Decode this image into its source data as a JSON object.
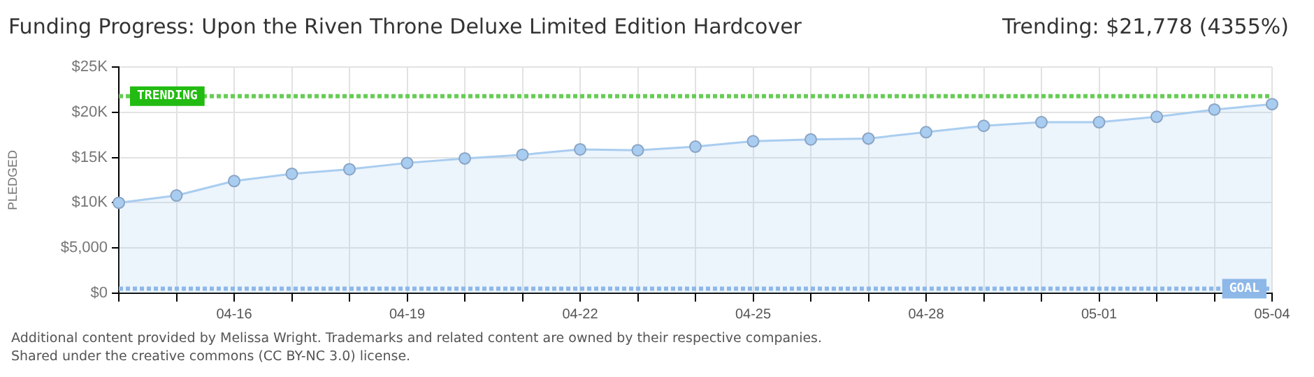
{
  "chart_data": {
    "type": "area",
    "title": "Funding Progress: Upon the Riven Throne Deluxe Limited Edition Hardcover",
    "subtitle": "Trending: $21,778 (4355%)",
    "ylabel": "PLEDGED",
    "categories": [
      null,
      null,
      "04-16",
      null,
      null,
      "04-19",
      null,
      null,
      "04-22",
      null,
      null,
      "04-25",
      null,
      null,
      "04-28",
      null,
      null,
      "05-01",
      null,
      null,
      "05-04"
    ],
    "values": [
      10000,
      10800,
      12400,
      13200,
      13700,
      14400,
      14900,
      15300,
      15900,
      15800,
      16200,
      16800,
      17000,
      17100,
      17800,
      18500,
      18900,
      18900,
      19500,
      20300,
      20900
    ],
    "color": "#a9cdf0",
    "marker": "circle",
    "grid": true,
    "ylim": [
      0,
      25000
    ],
    "yticks": [
      {
        "value": 0,
        "label": "$0"
      },
      {
        "value": 5000,
        "label": "$5,000"
      },
      {
        "value": 10000,
        "label": "$10K"
      },
      {
        "value": 15000,
        "label": "$15K"
      },
      {
        "value": 20000,
        "label": "$20K"
      },
      {
        "value": 25000,
        "label": "$25K"
      }
    ],
    "ref_lines": [
      {
        "axis": "y",
        "value": 21778,
        "label": "TRENDING",
        "color": "#66cc55",
        "line_style": "dotted"
      },
      {
        "axis": "y",
        "value": 500,
        "label": "GOAL",
        "color": "#8db8e8",
        "line_style": "dotted"
      }
    ],
    "annotations": [
      "Additional content provided by Melissa Wright. Trademarks and related content are owned by their respective companies.",
      "Shared under the creative commons (CC BY-NC 3.0) license."
    ]
  }
}
